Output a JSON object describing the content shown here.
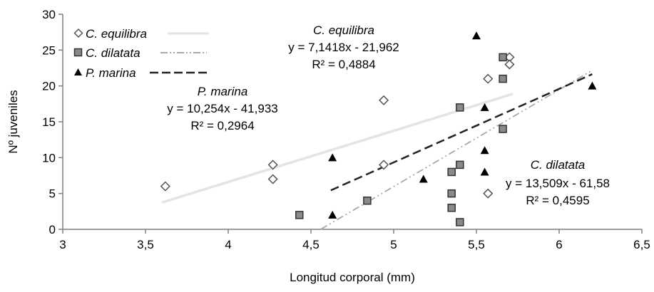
{
  "chart_data": {
    "type": "scatter",
    "title": "",
    "xlabel": "Longitud corporal (mm)",
    "ylabel": "Nº juveniles",
    "xlim": [
      3,
      6.5
    ],
    "ylim": [
      0,
      30
    ],
    "xticks": [
      3,
      3.5,
      4,
      4.5,
      5,
      5.5,
      6,
      6.5
    ],
    "xtick_labels": [
      "3",
      "3,5",
      "4",
      "4,5",
      "5",
      "5,5",
      "6",
      "6,5"
    ],
    "yticks": [
      0,
      5,
      10,
      15,
      20,
      25,
      30
    ],
    "ytick_labels": [
      "0",
      "5",
      "10",
      "15",
      "20",
      "25",
      "30"
    ],
    "grid": false,
    "legend_position": "top-left",
    "series": [
      {
        "name": "C. equilibra",
        "marker": "diamond-open",
        "color": "#555555",
        "trend_color": "#e4e4e4",
        "trend_style": "solid",
        "points": [
          [
            3.62,
            6
          ],
          [
            4.27,
            9
          ],
          [
            4.27,
            7
          ],
          [
            4.94,
            18
          ],
          [
            4.94,
            9
          ],
          [
            5.57,
            21
          ],
          [
            5.57,
            5
          ],
          [
            5.7,
            24
          ],
          [
            5.7,
            23
          ]
        ],
        "trend": {
          "slope": 7.1418,
          "intercept": -21.962,
          "x_range": [
            3.6,
            5.72
          ]
        },
        "equation": "y = 7,1418x - 21,962",
        "r2": "R² = 0,4884"
      },
      {
        "name": "C. dilatata",
        "marker": "square-filled-grey",
        "color": "#555555",
        "trend_color": "#a9a9a9",
        "trend_style": "dash-dot-dot",
        "points": [
          [
            4.43,
            2
          ],
          [
            4.84,
            4
          ],
          [
            5.35,
            8
          ],
          [
            5.35,
            5
          ],
          [
            5.35,
            3
          ],
          [
            5.4,
            17
          ],
          [
            5.4,
            9
          ],
          [
            5.4,
            1
          ],
          [
            5.66,
            24
          ],
          [
            5.66,
            21
          ],
          [
            5.66,
            14
          ]
        ],
        "trend": {
          "slope": 13.509,
          "intercept": -61.58,
          "x_range": [
            4.56,
            6.2
          ]
        },
        "equation": "y = 13,509x - 61,58",
        "r2": "R² = 0,4595"
      },
      {
        "name": "P. marina",
        "marker": "triangle-filled",
        "color": "#000000",
        "trend_color": "#222222",
        "trend_style": "dashed",
        "points": [
          [
            4.63,
            10
          ],
          [
            4.63,
            2
          ],
          [
            5.18,
            7
          ],
          [
            5.5,
            27
          ],
          [
            5.55,
            17
          ],
          [
            5.55,
            11
          ],
          [
            5.55,
            8
          ],
          [
            6.2,
            20
          ]
        ],
        "trend": {
          "slope": 10.254,
          "intercept": -41.933,
          "x_range": [
            4.62,
            6.2
          ]
        },
        "equation": "y = 10,254x - 41,933",
        "r2": "R² = 0,2964"
      }
    ]
  },
  "annotations": {
    "c_equilibra": {
      "title": "C. equilibra",
      "equation": "y = 7,1418x - 21,962",
      "r2": "R² = 0,4884"
    },
    "p_marina": {
      "title": "P. marina",
      "equation": "y = 10,254x - 41,933",
      "r2": "R² = 0,2964"
    },
    "c_dilatata": {
      "title": "C. dilatata",
      "equation": "y = 13,509x - 61,58",
      "r2": "R² = 0,4595"
    }
  }
}
